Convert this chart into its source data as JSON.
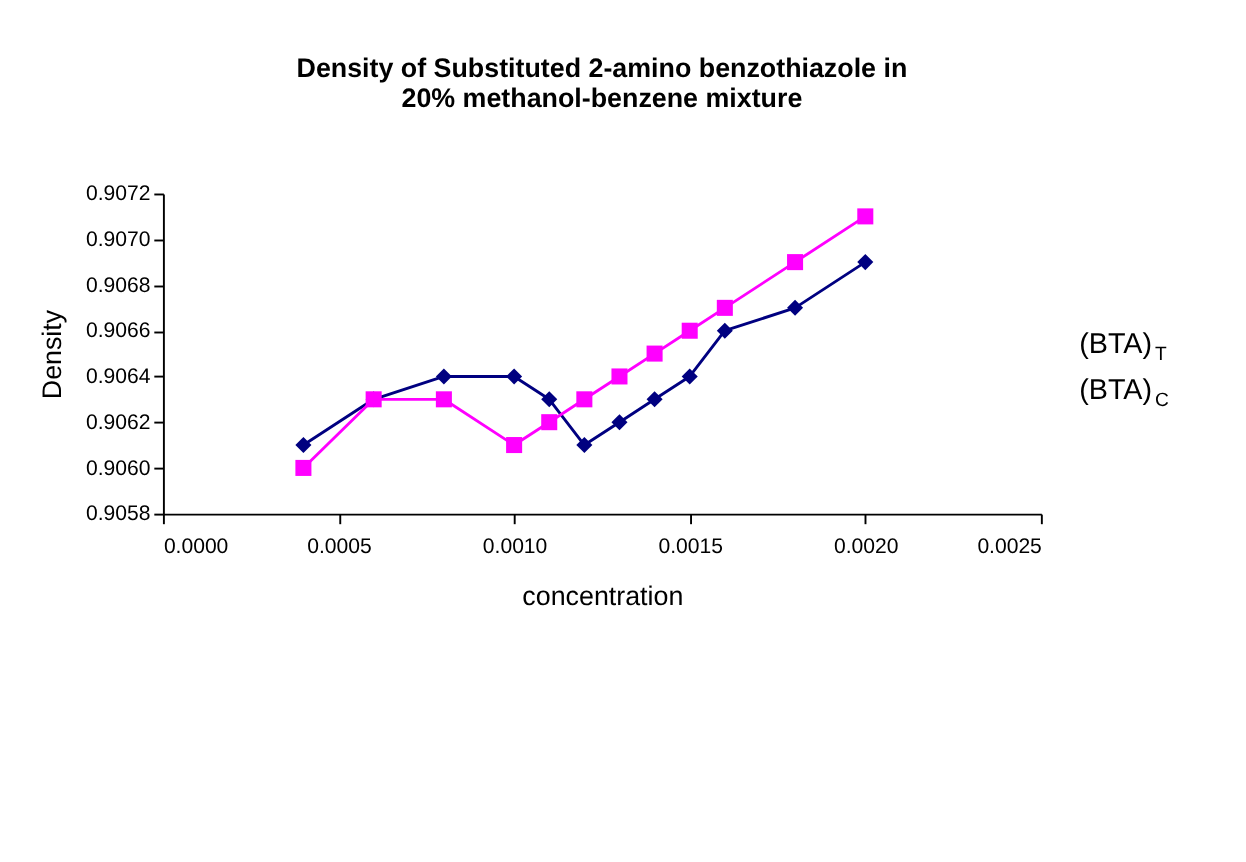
{
  "chart_data": {
    "type": "line",
    "title": [
      "Density of Substituted 2-amino benzothiazole in",
      "20% methanol-benzene mixture"
    ],
    "xlabel": "concentration",
    "ylabel": "Density",
    "x": [
      0.0004,
      0.0006,
      0.0008,
      0.001,
      0.0011,
      0.0012,
      0.0013,
      0.0014,
      0.0015,
      0.0016,
      0.0018,
      0.002
    ],
    "series": [
      {
        "color": "#000080",
        "marker": "diamond",
        "values": [
          0.9061,
          0.9063,
          0.9064,
          0.9064,
          0.9063,
          0.9061,
          0.9062,
          0.9063,
          0.9064,
          0.9066,
          0.9067,
          0.9069
        ]
      },
      {
        "color": "#ff00ff",
        "marker": "square",
        "values": [
          0.906,
          0.9063,
          0.9063,
          0.9061,
          0.9062,
          0.9063,
          0.9064,
          0.9065,
          0.9066,
          0.9067,
          0.9069,
          0.9071
        ]
      }
    ],
    "annotations": [
      "(BTA)$_{T}$",
      "(BTA)$_{C}$"
    ],
    "xlim": [
      0.0,
      0.0025
    ],
    "xticks": [
      {
        "value": 0.0,
        "label": "0.0000"
      },
      {
        "value": 0.0005,
        "label": "0.0005"
      },
      {
        "value": 0.001,
        "label": "0.0010"
      },
      {
        "value": 0.0015,
        "label": "0.0015"
      },
      {
        "value": 0.002,
        "label": "0.0020"
      },
      {
        "value": 0.0025,
        "label": "0.0025"
      }
    ],
    "ylim": [
      0.9058,
      0.9072
    ],
    "yticks": [
      {
        "value": 0.9058,
        "label": "0.9058"
      },
      {
        "value": 0.906,
        "label": "0.9060"
      },
      {
        "value": 0.9062,
        "label": "0.9062"
      },
      {
        "value": 0.9064,
        "label": "0.9064"
      },
      {
        "value": 0.9066,
        "label": "0.9066"
      },
      {
        "value": 0.9068,
        "label": "0.9068"
      },
      {
        "value": 0.907,
        "label": "0.9070"
      },
      {
        "value": 0.9072,
        "label": "0.9072"
      }
    ],
    "grid": false,
    "line_style": "solid"
  }
}
